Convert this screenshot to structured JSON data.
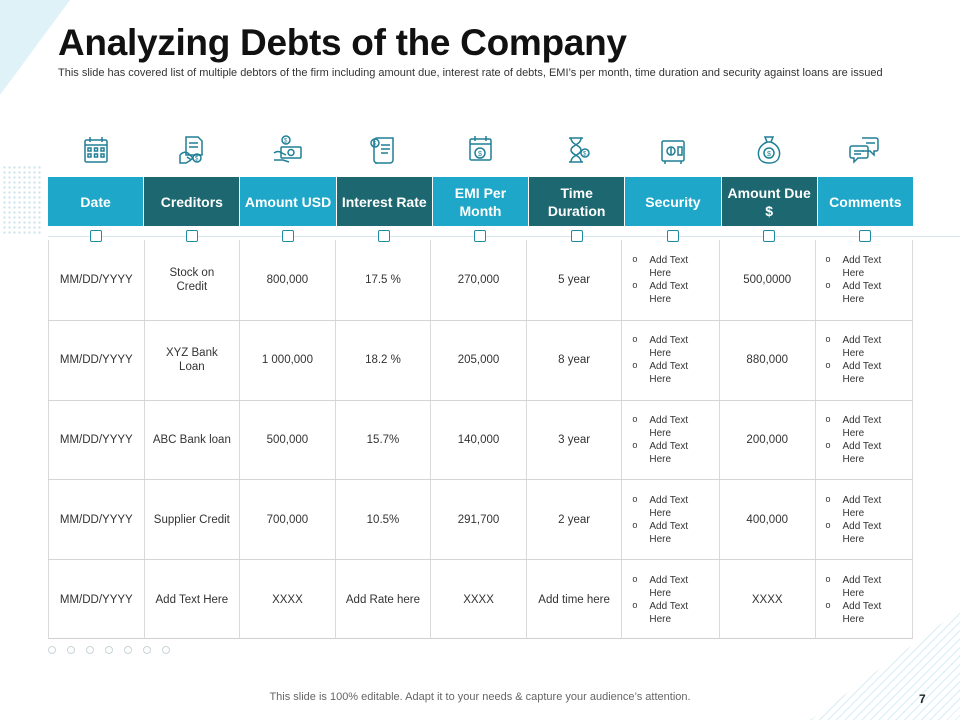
{
  "title": "Analyzing Debts of the Company",
  "subtitle": "This slide has covered list of multiple debtors of the firm including amount due, interest rate of debts, EMI’s  per month, time duration and security against loans are issued",
  "icons": [
    "calendar-icon",
    "creditor-document-icon",
    "money-hand-icon",
    "interest-rate-scroll-icon",
    "emi-calendar-icon",
    "hourglass-icon",
    "security-safe-icon",
    "money-bag-icon",
    "chat-bubbles-icon"
  ],
  "accent_colors": {
    "light": "#1ea7c9",
    "dark": "#1d6870"
  },
  "headers": [
    "Date",
    "Creditors",
    "Amount USD",
    "Interest Rate",
    "EMI Per Month",
    "Time Duration",
    "Security",
    "Amount Due $",
    "Comments"
  ],
  "rows": [
    {
      "date": "MM/DD/YYYY",
      "creditor": "Stock on Credit",
      "amount": "800,000",
      "rate": "17.5 %",
      "emi": "270,000",
      "duration": "5 year",
      "security": [
        "Add Text Here",
        "Add Text Here"
      ],
      "due": "500,0000",
      "comments": [
        "Add Text Here",
        "Add Text Here"
      ]
    },
    {
      "date": "MM/DD/YYYY",
      "creditor": "XYZ  Bank Loan",
      "amount": "1 000,000",
      "rate": "18.2 %",
      "emi": "205,000",
      "duration": "8 year",
      "security": [
        "Add Text Here",
        "Add Text Here"
      ],
      "due": "880,000",
      "comments": [
        "Add Text Here",
        "Add Text Here"
      ]
    },
    {
      "date": "MM/DD/YYYY",
      "creditor": "ABC Bank loan",
      "amount": "500,000",
      "rate": "15.7%",
      "emi": "140,000",
      "duration": "3 year",
      "security": [
        "Add Text Here",
        "Add Text Here"
      ],
      "due": "200,000",
      "comments": [
        "Add Text Here",
        "Add Text Here"
      ]
    },
    {
      "date": "MM/DD/YYYY",
      "creditor": "Supplier Credit",
      "amount": "700,000",
      "rate": "10.5%",
      "emi": "291,700",
      "duration": "2 year",
      "security": [
        "Add Text Here",
        "Add Text Here"
      ],
      "due": "400,000",
      "comments": [
        "Add Text Here",
        "Add Text Here"
      ]
    },
    {
      "date": "MM/DD/YYYY",
      "creditor": "Add Text Here",
      "amount": "XXXX",
      "rate": "Add Rate here",
      "emi": "XXXX",
      "duration": "Add time here",
      "security": [
        "Add Text Here",
        "Add Text Here"
      ],
      "due": "XXXX",
      "comments": [
        "Add Text Here",
        "Add Text Here"
      ]
    }
  ],
  "footer_note": "This slide is 100% editable. Adapt it to your needs & capture your audience’s attention.",
  "page_number": "7"
}
